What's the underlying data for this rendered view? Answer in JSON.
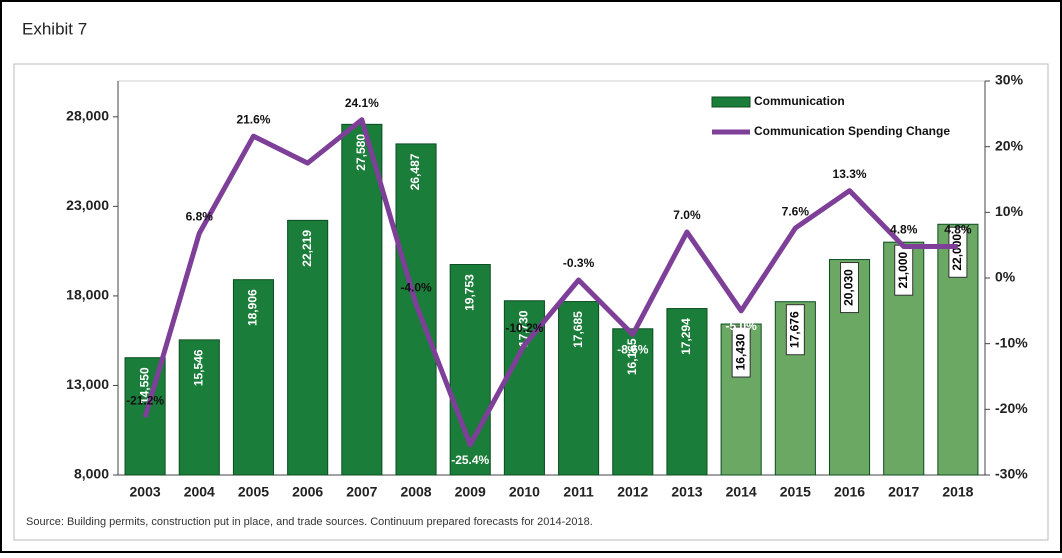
{
  "header": "Exhibit 7",
  "chart_data": {
    "type": "bar_line",
    "categories": [
      "2003",
      "2004",
      "2005",
      "2006",
      "2007",
      "2008",
      "2009",
      "2010",
      "2011",
      "2012",
      "2013",
      "2014",
      "2015",
      "2016",
      "2017",
      "2018"
    ],
    "series": [
      {
        "name": "Communication",
        "color": "#1b7d3a",
        "colors": [
          "#1b7d3a",
          "#1b7d3a",
          "#1b7d3a",
          "#1b7d3a",
          "#1b7d3a",
          "#1b7d3a",
          "#1b7d3a",
          "#1b7d3a",
          "#1b7d3a",
          "#1b7d3a",
          "#1b7d3a",
          "#6aa864",
          "#6aa864",
          "#6aa864",
          "#6aa864",
          "#6aa864"
        ],
        "values": [
          14550,
          15546,
          18906,
          22219,
          27580,
          26487,
          19753,
          17730,
          17685,
          16165,
          17294,
          16430,
          17676,
          20030,
          21000,
          22000
        ],
        "value_labels": [
          "14,550",
          "15,546",
          "18,906",
          "22,219",
          "27,580",
          "26,487",
          "19,753",
          "17,730",
          "17,685",
          "16,165",
          "17,294",
          "16,430",
          "17,676",
          "20,030",
          "21,000",
          "22,000"
        ]
      },
      {
        "name": "Communication Spending Change",
        "color": "#7d3f98",
        "axis": "y2",
        "values": [
          -21.2,
          6.8,
          21.6,
          17.5,
          24.1,
          -4.0,
          -25.4,
          -10.2,
          -0.3,
          -8.6,
          7.0,
          -5.0,
          7.6,
          13.3,
          4.8,
          4.8
        ],
        "value_labels": [
          "-21.2%",
          "6.8%",
          "21.6%",
          "17.5%",
          "24.1%",
          "-4.0%",
          "-25.4%",
          "-10.2%",
          "-0.3%",
          "-8.6%",
          "7.0%",
          "-5.0%",
          "7.6%",
          "13.3%",
          "4.8%",
          "4.8%"
        ]
      }
    ],
    "ylim": [
      8000,
      30000
    ],
    "yticks": [
      {
        "value": 8000,
        "label": "8,000"
      },
      {
        "value": 13000,
        "label": "13,000"
      },
      {
        "value": 18000,
        "label": "18,000"
      },
      {
        "value": 23000,
        "label": "23,000"
      },
      {
        "value": 28000,
        "label": "28,000"
      }
    ],
    "y2lim": [
      -30,
      30
    ],
    "y2ticks": [
      {
        "value": -30,
        "label": "-30%"
      },
      {
        "value": -20,
        "label": "-20%"
      },
      {
        "value": -10,
        "label": "-10%"
      },
      {
        "value": 0,
        "label": "0%"
      },
      {
        "value": 10,
        "label": "10%"
      },
      {
        "value": 20,
        "label": "20%"
      },
      {
        "value": 30,
        "label": "30%"
      }
    ],
    "legend": "top-right",
    "source": "Source:  Building permits, construction put in place, and trade sources.  Continuum prepared forecasts for 2014-2018."
  }
}
